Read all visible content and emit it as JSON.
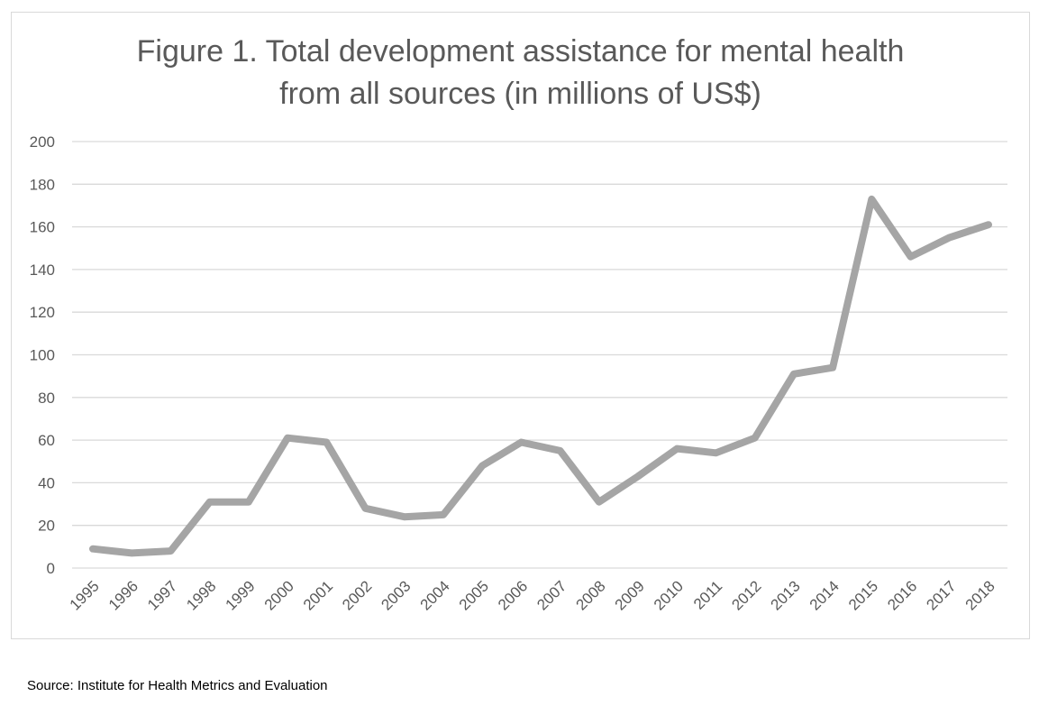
{
  "chart_data": {
    "type": "line",
    "title_lines": [
      "Figure 1. Total development assistance for mental health",
      "from all sources (in millions of US$)"
    ],
    "xlabel": "",
    "ylabel": "",
    "categories": [
      "1995",
      "1996",
      "1997",
      "1998",
      "1999",
      "2000",
      "2001",
      "2002",
      "2003",
      "2004",
      "2005",
      "2006",
      "2007",
      "2008",
      "2009",
      "2010",
      "2011",
      "2012",
      "2013",
      "2014",
      "2015",
      "2016",
      "2017",
      "2018"
    ],
    "series": [
      {
        "values": [
          9,
          7,
          8,
          31,
          31,
          61,
          59,
          28,
          24,
          25,
          48,
          59,
          55,
          31,
          43,
          56,
          54,
          61,
          91,
          94,
          173,
          146,
          155,
          161
        ]
      }
    ],
    "ylim": [
      0,
      200
    ],
    "yticks": [
      0,
      20,
      40,
      60,
      80,
      100,
      120,
      140,
      160,
      180,
      200
    ],
    "grid": true,
    "legend": "none",
    "colors": {
      "line": "#a5a5a5",
      "grid": "#d9d9d9",
      "axis_text": "#595959",
      "title": "#595959"
    }
  },
  "source_note": "Source: Institute for Health Metrics and Evaluation"
}
